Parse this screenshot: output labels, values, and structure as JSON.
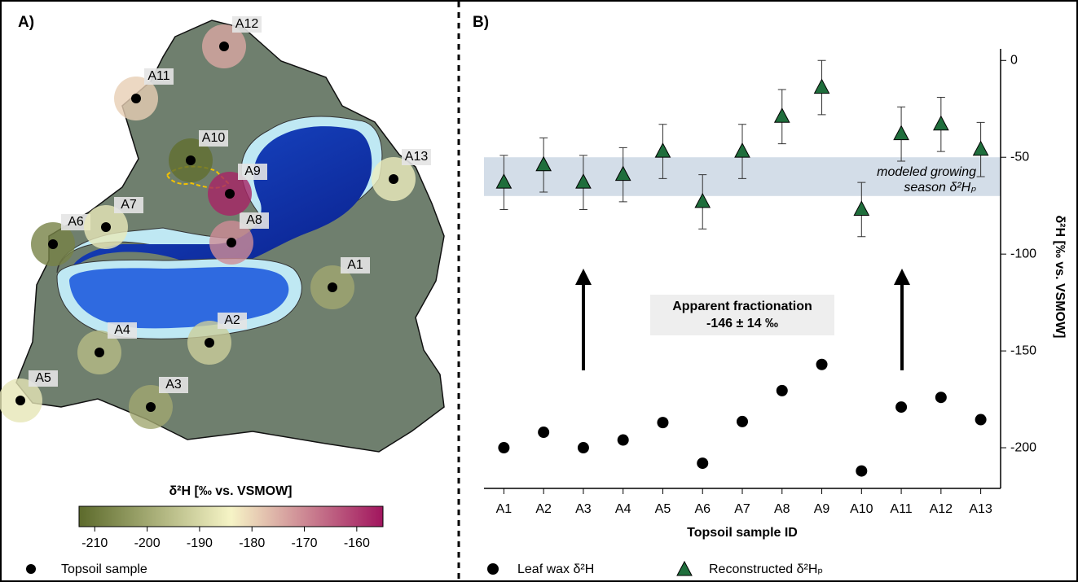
{
  "chart_data": [
    {
      "type": "map",
      "panel_label": "A)",
      "colorbar": {
        "title": "δ²H [‰ vs. VSMOW]",
        "lim": [
          -213,
          -155
        ],
        "ticks": [
          -210,
          -200,
          -190,
          -180,
          -170,
          -160
        ],
        "colors": [
          "#5c6a2b",
          "#f6f4c6",
          "#a1155e"
        ]
      },
      "legend": "Topsoil sample"
    },
    {
      "type": "scatter",
      "panel_label": "B)",
      "categories": [
        "A1",
        "A2",
        "A3",
        "A4",
        "A5",
        "A6",
        "A7",
        "A8",
        "A9",
        "A10",
        "A11",
        "A12",
        "A13"
      ],
      "series": [
        {
          "name": "Leaf wax δ²H",
          "color": "#000000",
          "marker": "circle",
          "values": [
            -200,
            -192,
            -200,
            -196,
            -187,
            -208,
            -186.5,
            -170.5,
            -157,
            -212,
            -179,
            -174,
            -185.5
          ]
        },
        {
          "name": "Reconstructed δ²Hₚ",
          "color": "#1f6e3c",
          "marker": "triangle",
          "values": [
            -63,
            -54,
            -63,
            -59,
            -47,
            -73,
            -47,
            -29,
            -14,
            -77,
            -38,
            -33,
            -46
          ],
          "errors": [
            14,
            14,
            14,
            14,
            14,
            14,
            14,
            14,
            14,
            14,
            14,
            14,
            14
          ]
        }
      ],
      "ylim": [
        -221,
        6
      ],
      "yticks": [
        0,
        -50,
        -100,
        -150,
        -200
      ],
      "ylabel": "δ²H [‰ vs. VSMOW]",
      "xlabel": "Topsoil sample ID",
      "band": {
        "range": [
          -50,
          -70
        ],
        "color": "#d3dde8",
        "label": [
          "modeled growing",
          "season δ²Hₚ"
        ]
      },
      "annotation": [
        "Apparent fractionation",
        "-146 ± 14 ‰"
      ]
    }
  ]
}
